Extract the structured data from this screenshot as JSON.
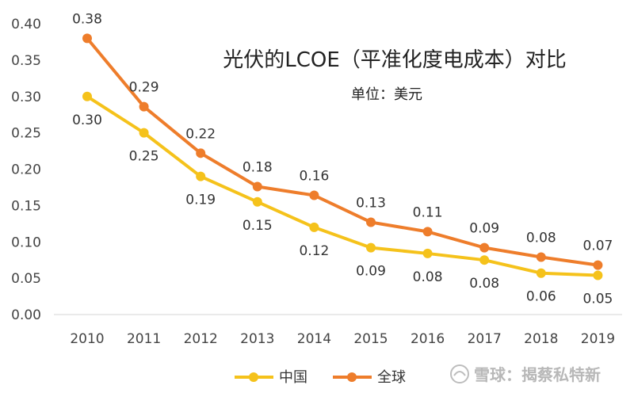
{
  "chart_data": {
    "type": "line",
    "title": "光伏的LCOE（平准化度电成本）对比",
    "subtitle": "单位：美元",
    "categories": [
      "2010",
      "2011",
      "2012",
      "2013",
      "2014",
      "2015",
      "2016",
      "2017",
      "2018",
      "2019"
    ],
    "ylim": [
      0,
      0.4
    ],
    "yticks": [
      "0.00",
      "0.05",
      "0.10",
      "0.15",
      "0.20",
      "0.25",
      "0.30",
      "0.35",
      "0.40"
    ],
    "grid": false,
    "legend_position": "bottom",
    "series": [
      {
        "name": "中国",
        "color": "#F5C21B",
        "values": [
          0.3,
          0.25,
          0.19,
          0.155,
          0.12,
          0.092,
          0.084,
          0.075,
          0.057,
          0.054
        ],
        "labels": [
          "0.30",
          "0.25",
          "0.19",
          "0.15",
          "0.12",
          "0.09",
          "0.08",
          "0.08",
          "0.06",
          "0.05"
        ]
      },
      {
        "name": "全球",
        "color": "#EE7D2B",
        "values": [
          0.38,
          0.286,
          0.222,
          0.176,
          0.164,
          0.127,
          0.114,
          0.092,
          0.079,
          0.068
        ],
        "labels": [
          "0.38",
          "0.29",
          "0.22",
          "0.18",
          "0.16",
          "0.13",
          "0.11",
          "0.09",
          "0.08",
          "0.07"
        ]
      }
    ]
  },
  "watermark": "雪球：揭蔡私特新"
}
